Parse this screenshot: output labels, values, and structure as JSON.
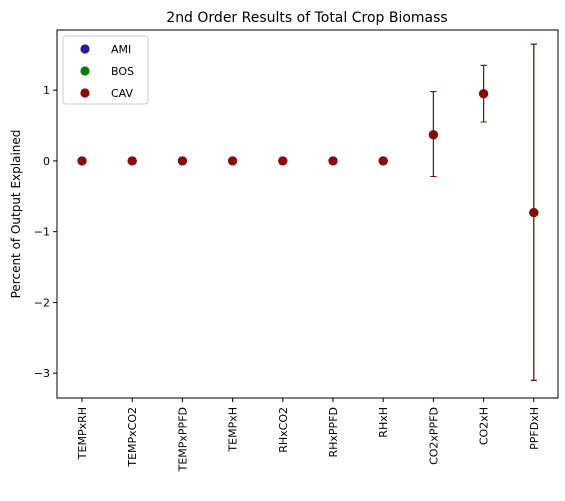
{
  "chart_data": {
    "type": "scatter",
    "title": "2nd Order Results of Total Crop Biomass",
    "xlabel": "",
    "ylabel": "Percent of Output Explained",
    "categories": [
      "TEMPxRH",
      "TEMPxCO2",
      "TEMPxPPFD",
      "TEMPxH",
      "RHxCO2",
      "RHxPPFD",
      "RHxH",
      "CO2xPPFD",
      "CO2xH",
      "PPFDxH"
    ],
    "ylim": [
      -3.35,
      1.85
    ],
    "yticks": [
      -3,
      -2,
      -1,
      0,
      1
    ],
    "grid": false,
    "legend_position": "top-left",
    "series": [
      {
        "name": "AMI",
        "color": "#2a1a9c",
        "values": [
          0,
          0,
          0,
          0,
          0,
          0,
          0,
          0.37,
          0.95,
          -0.73
        ],
        "error": [
          null,
          null,
          null,
          null,
          null,
          null,
          null,
          [
            -0.22,
            0.98
          ],
          [
            0.55,
            1.35
          ],
          [
            -3.1,
            1.65
          ]
        ]
      },
      {
        "name": "BOS",
        "color": "#0a7a0a",
        "values": [
          0,
          0,
          0,
          0,
          0,
          0,
          0,
          0.37,
          0.95,
          -0.73
        ],
        "error": [
          null,
          null,
          null,
          null,
          null,
          null,
          null,
          [
            -0.22,
            0.98
          ],
          [
            0.55,
            1.35
          ],
          [
            -3.1,
            1.65
          ]
        ]
      },
      {
        "name": "CAV",
        "color": "#8b0a0a",
        "values": [
          0,
          0,
          0,
          0,
          0,
          0,
          0,
          0.37,
          0.95,
          -0.73
        ],
        "error": [
          null,
          null,
          null,
          null,
          null,
          null,
          null,
          [
            -0.22,
            0.98
          ],
          [
            0.55,
            1.35
          ],
          [
            -3.1,
            1.65
          ]
        ]
      }
    ]
  }
}
